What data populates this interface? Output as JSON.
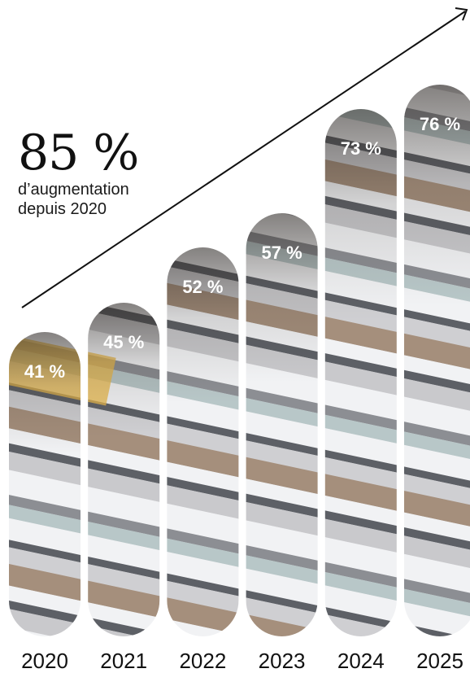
{
  "headline": {
    "value": "85 %",
    "line1": "d’augmentation",
    "line2": "depuis 2020"
  },
  "chart_data": {
    "type": "bar",
    "categories": [
      "2020",
      "2021",
      "2022",
      "2023",
      "2024",
      "2025"
    ],
    "values": [
      41,
      45,
      52,
      57,
      73,
      76
    ],
    "value_labels": [
      "41 %",
      "45 %",
      "52 %",
      "57 %",
      "73 %",
      "76 %"
    ],
    "title": "",
    "xlabel": "",
    "ylabel": "",
    "ylim": [
      0,
      80
    ],
    "grid": false,
    "legend": "none",
    "trend_arrow": true
  },
  "colors": {
    "text": "#111111",
    "label_on_bar": "#ffffff",
    "glass": "#e9b84a",
    "white_band": "#f1f2f4",
    "gray_band": "#8c8e93",
    "shadow_band": "#5d6066",
    "warm_top": "#a58f7c"
  }
}
